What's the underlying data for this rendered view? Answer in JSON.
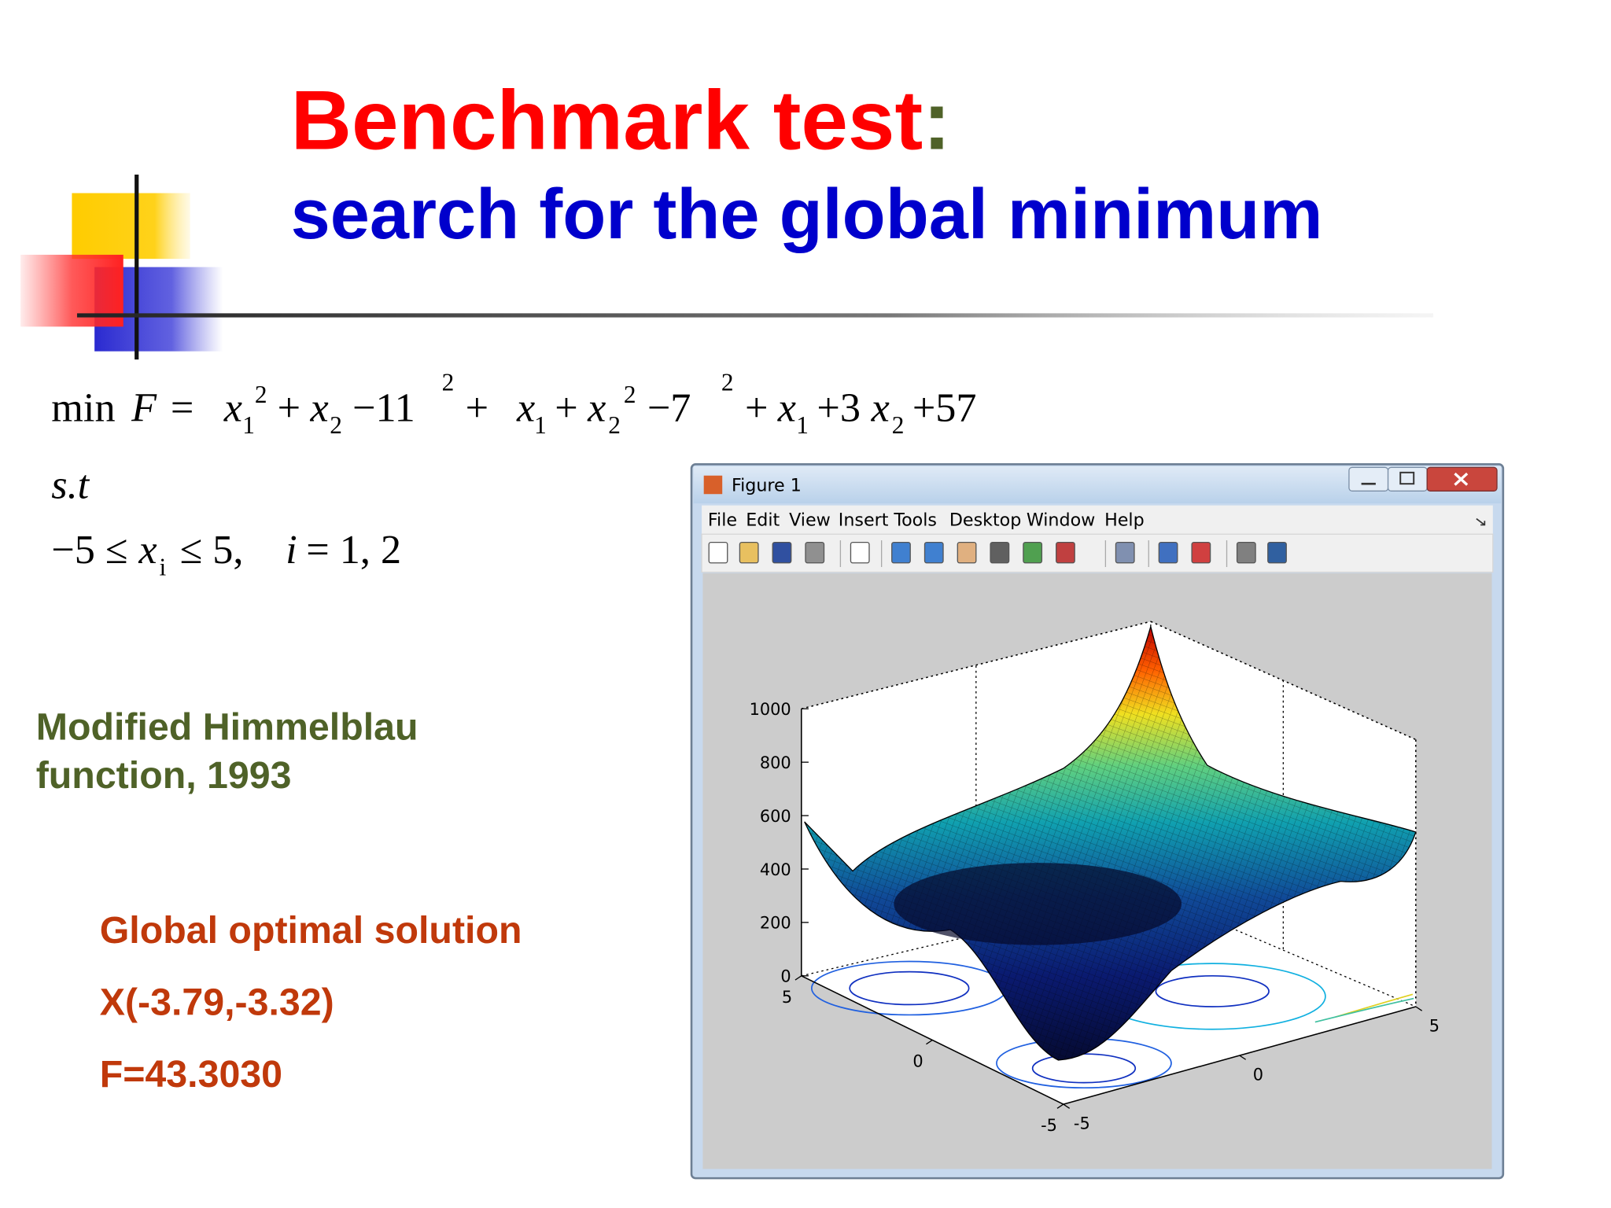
{
  "title": {
    "main": "Benchmark test",
    "colon": ":",
    "subtitle": "search for the global minimum"
  },
  "objective": {
    "parts": [
      "min",
      "F",
      "=",
      "x",
      "1",
      "2",
      "+",
      "x",
      "2",
      "−11",
      "2",
      "+",
      "x",
      "1",
      "+",
      "x",
      "2",
      "2",
      "−7",
      "2",
      "+",
      "x",
      "1",
      "+3",
      "x",
      "2",
      "+57"
    ]
  },
  "constraints": {
    "label": "s.t",
    "parts": [
      "−5 ≤",
      "x",
      "i",
      "≤ 5,",
      "i",
      "= 1, 2"
    ]
  },
  "function_name": {
    "lines": [
      "Modified Himmelblau",
      "function, 1993"
    ]
  },
  "solution": {
    "lines": [
      "Global optimal solution",
      "X(-3.79,-3.32)",
      "F=43.3030"
    ]
  },
  "figure_window": {
    "title": "Figure 1",
    "menu": [
      "File",
      "Edit",
      "View",
      "Insert",
      "Tools",
      "Desktop",
      "Window",
      "Help"
    ],
    "plot": {
      "zlim": [
        0,
        1000
      ],
      "zticks": [
        0,
        200,
        400,
        600,
        800,
        1000
      ],
      "xlim": [
        -5,
        5
      ],
      "xticks": [
        -5,
        0,
        5
      ],
      "ylim": [
        -5,
        5
      ],
      "yticks": [
        -5,
        0,
        5
      ]
    }
  }
}
